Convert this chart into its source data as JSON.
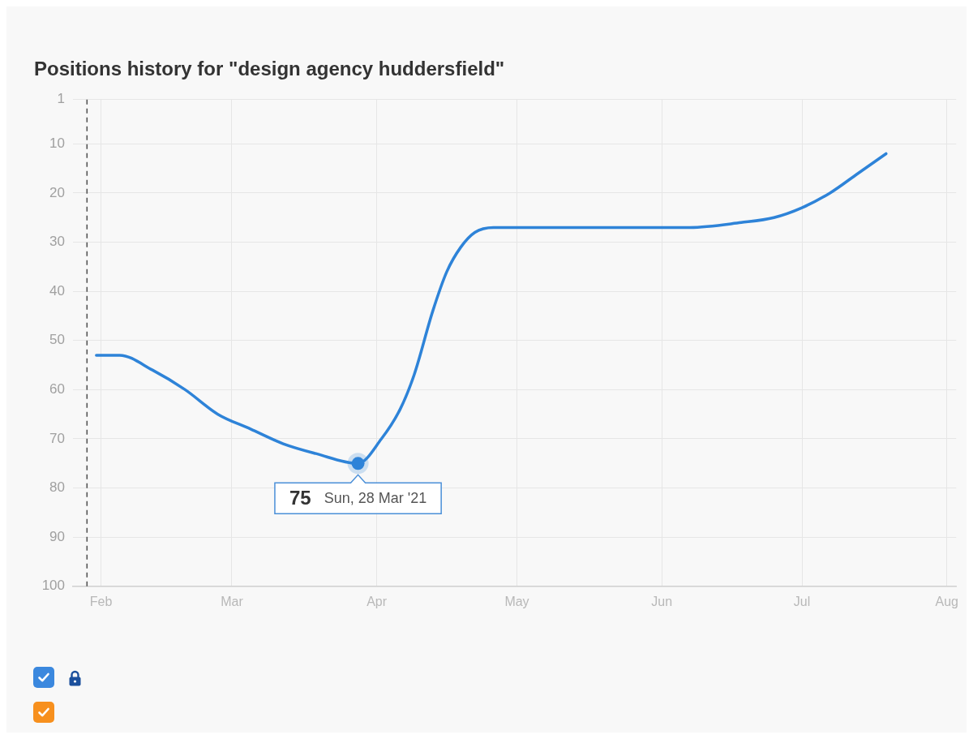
{
  "chart_data": {
    "type": "line",
    "title": "Positions history for \"design agency huddersfield\"",
    "xlim": [
      "2021-01-26",
      "2021-08-03"
    ],
    "xticks": [
      {
        "value": "2021-02-01",
        "label": "Feb"
      },
      {
        "value": "2021-03-01",
        "label": "Mar"
      },
      {
        "value": "2021-04-01",
        "label": "Apr"
      },
      {
        "value": "2021-05-01",
        "label": "May"
      },
      {
        "value": "2021-06-01",
        "label": "Jun"
      },
      {
        "value": "2021-07-01",
        "label": "Jul"
      },
      {
        "value": "2021-08-01",
        "label": "Aug"
      }
    ],
    "ylim": [
      100,
      1
    ],
    "yticks": [
      1,
      10,
      20,
      30,
      40,
      50,
      60,
      70,
      80,
      90,
      100
    ],
    "grid": true,
    "marker": "none",
    "series": [
      {
        "color": "#2e83d8",
        "x": [
          "2021-01-31",
          "2021-02-05",
          "2021-02-12",
          "2021-02-19",
          "2021-02-26",
          "2021-03-05",
          "2021-03-12",
          "2021-03-19",
          "2021-03-28",
          "2021-04-02",
          "2021-04-06",
          "2021-04-09",
          "2021-04-13",
          "2021-04-16",
          "2021-04-19",
          "2021-04-22",
          "2021-04-26",
          "2021-05-15",
          "2021-06-07",
          "2021-06-18",
          "2021-06-25",
          "2021-07-01",
          "2021-07-07",
          "2021-07-13",
          "2021-07-19"
        ],
        "values": [
          53,
          53,
          56,
          60,
          65,
          68,
          71,
          73,
          75,
          70,
          64,
          57,
          44,
          36,
          31,
          28,
          27,
          27,
          27,
          26,
          25,
          23,
          20,
          16,
          12
        ]
      }
    ],
    "ref_lines": [
      {
        "axis": "x",
        "value": "2021-01-29",
        "color": "#555555",
        "line_style": "dashed"
      }
    ],
    "annotations": [
      {
        "text": "75",
        "x": "2021-03-28",
        "y": 75
      },
      {
        "text": "Sun, 28 Mar '21",
        "x": "2021-03-28",
        "y": 75
      }
    ]
  }
}
